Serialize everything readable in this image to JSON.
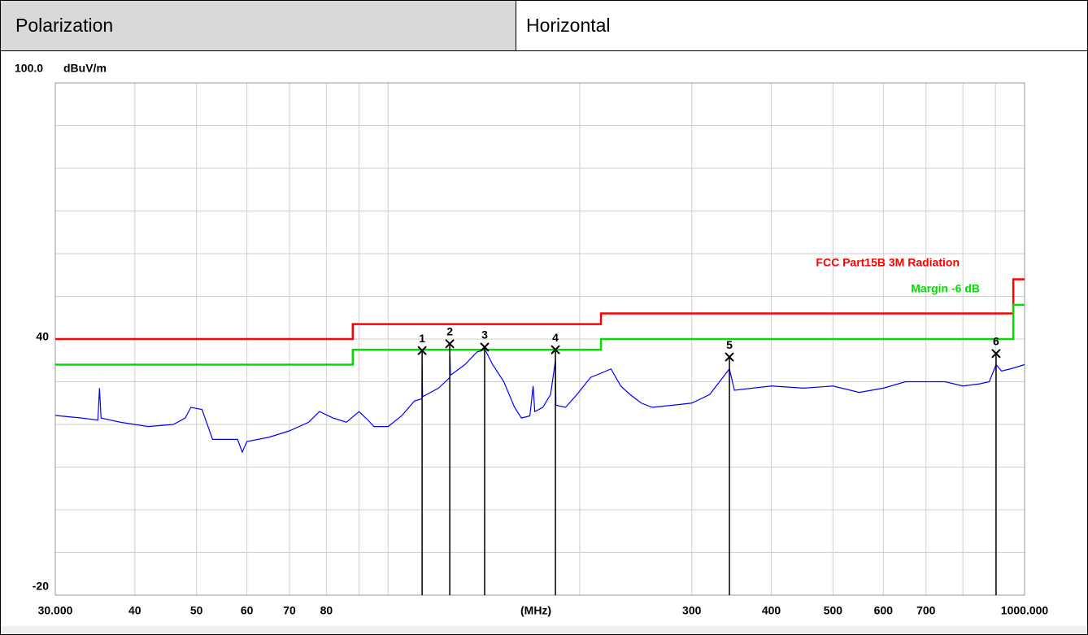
{
  "header": {
    "label": "Polarization",
    "value": "Horizontal"
  },
  "chart_data": {
    "type": "line",
    "y_unit": "dBuV/m",
    "x_axis_label": "(MHz)",
    "xscale": "log",
    "xlim": [
      30,
      1000
    ],
    "ylim": [
      -20,
      100
    ],
    "yticks": [
      {
        "value": 100,
        "label": "100.0"
      },
      40,
      -20
    ],
    "minor_yticks": [
      -10,
      0,
      10,
      20,
      30,
      50,
      60,
      70,
      80,
      90
    ],
    "xticks": [
      {
        "value": 30,
        "label": "30.000"
      },
      40,
      50,
      60,
      70,
      80,
      300,
      400,
      500,
      600,
      700,
      {
        "value": 1000,
        "label": "1000.000"
      }
    ],
    "minor_xticks": [
      90,
      100,
      200,
      800,
      900
    ],
    "grid": true,
    "series": [
      {
        "color": "#0000ff",
        "x": [
          30,
          33,
          35,
          35.2,
          35.4,
          38,
          42,
          46,
          48,
          49,
          51,
          53,
          56,
          58,
          59,
          60,
          65,
          70,
          75,
          78,
          82,
          86,
          90,
          93,
          95,
          100,
          105,
          110,
          113,
          113.1,
          113.3,
          120,
          125,
          125.1,
          125.3,
          132,
          138,
          142,
          146,
          152,
          158,
          162,
          167,
          169,
          170,
          175,
          180,
          183.2,
          183.5,
          190,
          198,
          208,
          216,
          224,
          232,
          240,
          250,
          260,
          280,
          300,
          320,
          343.8,
          350,
          400,
          450,
          500,
          550,
          600,
          650,
          700,
          750,
          800,
          850,
          880,
          902,
          920,
          950,
          1000
        ],
        "values": [
          22.1,
          21.5,
          21,
          28.5,
          21.5,
          20.5,
          19.5,
          20,
          21.5,
          24,
          23.5,
          16.5,
          16.5,
          16.5,
          13.5,
          16,
          17,
          18.5,
          20.5,
          23,
          21.5,
          20.5,
          23,
          21,
          19.5,
          19.5,
          22,
          25.5,
          26,
          34,
          26.5,
          28.5,
          31,
          36,
          31.5,
          34,
          37,
          37.5,
          34,
          30,
          24,
          21.5,
          22,
          29,
          23,
          24,
          27,
          35,
          24.5,
          24,
          27,
          31,
          32,
          33,
          29,
          27,
          25,
          24,
          24.5,
          25,
          27,
          33,
          28,
          29,
          28.5,
          29,
          27.5,
          28.5,
          30,
          30,
          30,
          29,
          29.5,
          30,
          34,
          32.5,
          33,
          34
        ]
      },
      {
        "name": "FCC Part15B 3M Radiation",
        "color": "#ff0000",
        "x": [
          30,
          88,
          88,
          216,
          216,
          960,
          960,
          1000
        ],
        "values": [
          40,
          40,
          43.5,
          43.5,
          46,
          46,
          54,
          54
        ]
      },
      {
        "name": "Margin -6 dB",
        "color": "#00dd00",
        "x": [
          30,
          88,
          88,
          216,
          216,
          960,
          960,
          1000
        ],
        "values": [
          34,
          34,
          37.5,
          37.5,
          40,
          40,
          48,
          48
        ]
      }
    ],
    "markers": [
      {
        "label": "1",
        "x": 113.1,
        "value": 37.3
      },
      {
        "label": "2",
        "x": 125.0,
        "value": 38.9
      },
      {
        "label": "3",
        "x": 141.8,
        "value": 38.1
      },
      {
        "label": "4",
        "x": 183.2,
        "value": 37.5
      },
      {
        "label": "5",
        "x": 343.8,
        "value": 35.8
      },
      {
        "label": "6",
        "x": 902,
        "value": 36.6
      }
    ]
  }
}
